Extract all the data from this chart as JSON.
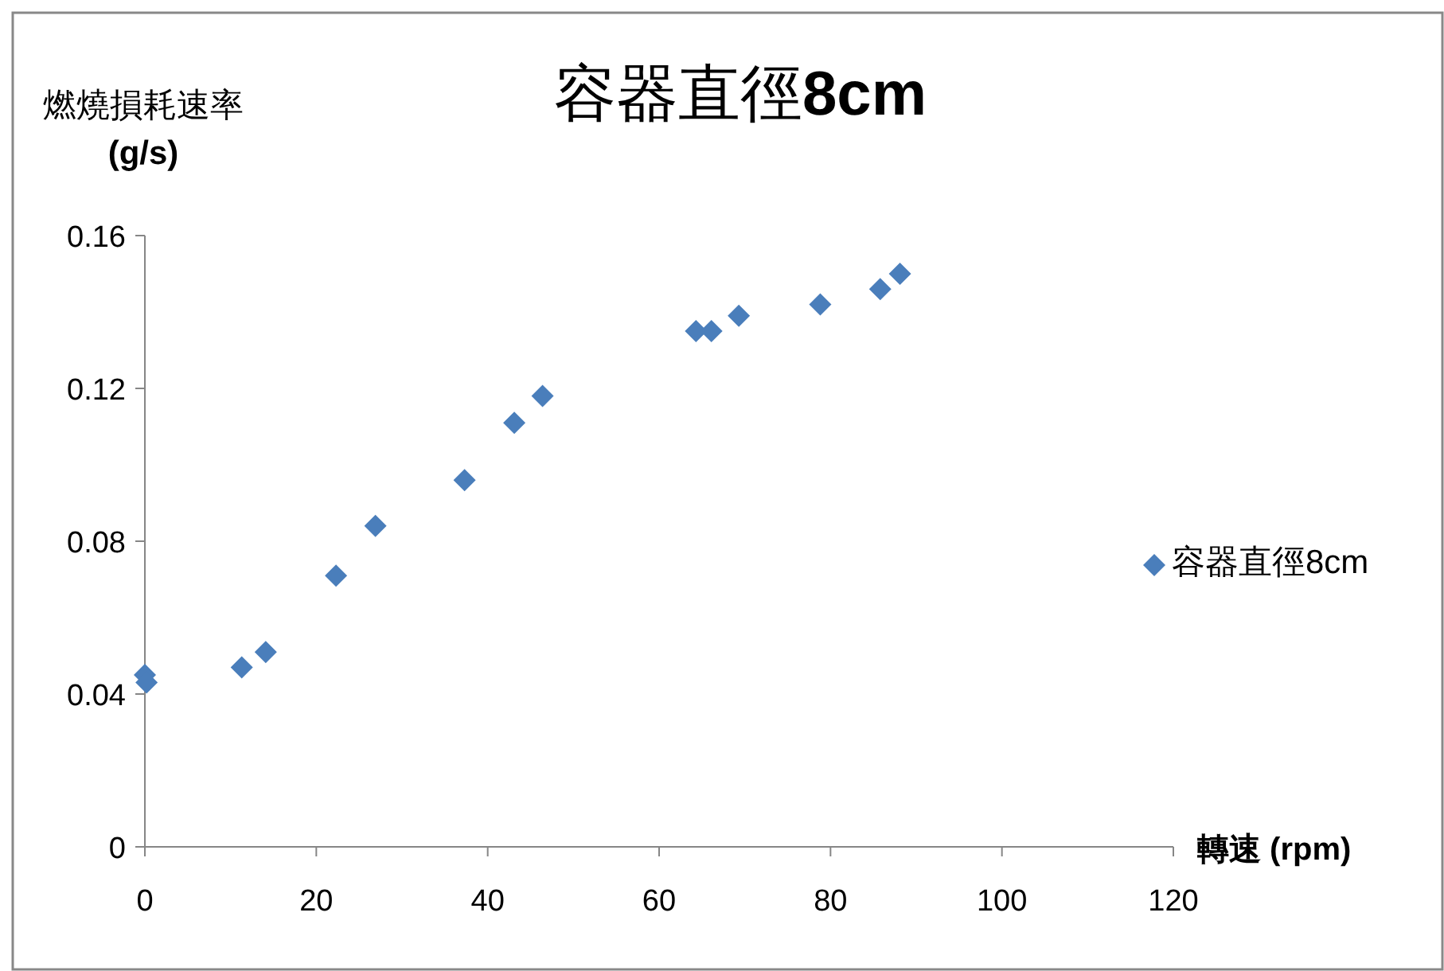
{
  "chart_data": {
    "type": "scatter",
    "title": "容器直徑**8cm**",
    "xlabel": "轉速 (rpm)",
    "ylabel": "燃燒損耗速率 **(g/s)**",
    "series": [
      {
        "name": "容器直徑8cm",
        "color": "#4a7ebb",
        "x": [
          0,
          0.2,
          11.3,
          14.1,
          22.3,
          26.9,
          37.3,
          43.1,
          46.4,
          64.3,
          66.1,
          69.3,
          78.8,
          85.8,
          88.1
        ],
        "values": [
          0.045,
          0.043,
          0.047,
          0.051,
          0.071,
          0.084,
          0.096,
          0.111,
          0.118,
          0.135,
          0.135,
          0.139,
          0.142,
          0.146,
          0.15
        ]
      }
    ],
    "xlim": [
      0,
      120
    ],
    "xticks": [
      0,
      20,
      40,
      60,
      80,
      100,
      120
    ],
    "ylim": [
      0,
      0.16
    ],
    "yticks": [
      0,
      0.04,
      0.08,
      0.12,
      0.16
    ],
    "grid": false,
    "legend": "right",
    "marker": "diamond"
  }
}
